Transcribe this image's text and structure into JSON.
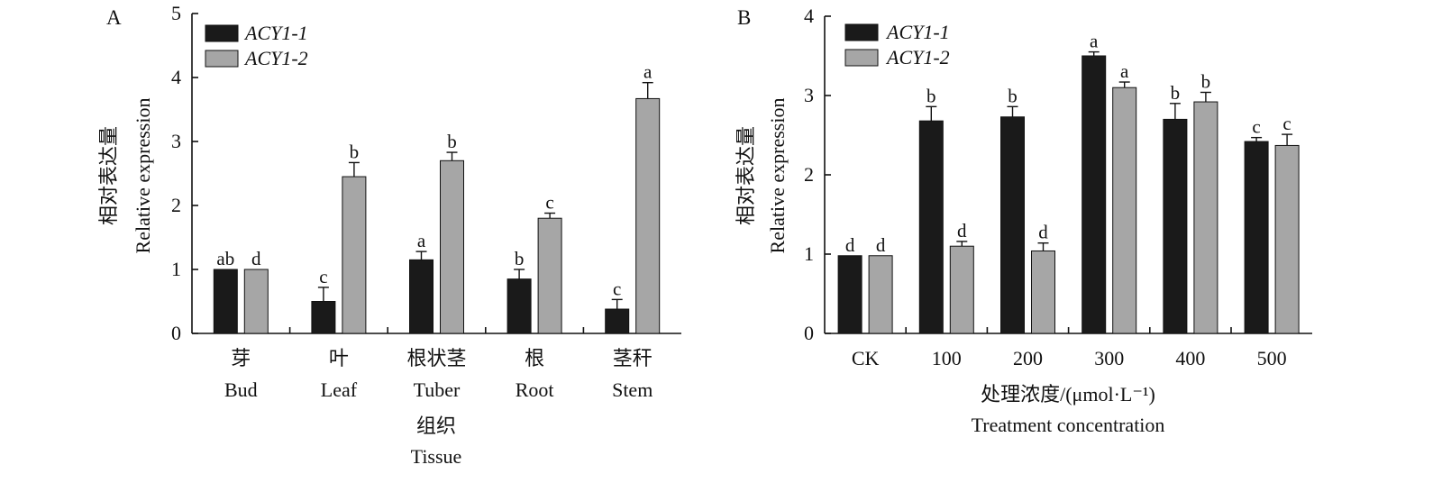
{
  "colors": {
    "series1": "#1a1a1a",
    "series2": "#a6a6a6",
    "axis": "#111111",
    "text": "#111111"
  },
  "chart_data": [
    {
      "panel": "A",
      "type": "bar",
      "ylabel_cn": "相对表达量",
      "ylabel_en": "Relative expression",
      "xlabel_cn": "组织",
      "xlabel_en": "Tissue",
      "ylim": [
        0,
        5
      ],
      "yticks": [
        "0",
        "1",
        "2",
        "3",
        "4",
        "5"
      ],
      "categories_cn": [
        "芽",
        "叶",
        "根状茎",
        "根",
        "茎秆"
      ],
      "categories_en": [
        "Bud",
        "Leaf",
        "Tuber",
        "Root",
        "Stem"
      ],
      "legend": [
        "ACY1-1",
        "ACY1-2"
      ],
      "legend_position": "top-left",
      "series": [
        {
          "name": "ACY1-1",
          "values": [
            1.0,
            0.5,
            1.15,
            0.85,
            0.38
          ],
          "errors": [
            0.0,
            0.22,
            0.13,
            0.15,
            0.15
          ],
          "letters": [
            "ab",
            "c",
            "a",
            "b",
            "c"
          ]
        },
        {
          "name": "ACY1-2",
          "values": [
            1.0,
            2.45,
            2.7,
            1.8,
            3.67
          ],
          "errors": [
            0.0,
            0.22,
            0.13,
            0.08,
            0.25
          ],
          "letters": [
            "d",
            "b",
            "b",
            "c",
            "a"
          ]
        }
      ]
    },
    {
      "panel": "B",
      "type": "bar",
      "ylabel_cn": "相对表达量",
      "ylabel_en": "Relative expression",
      "xlabel_cn": "处理浓度/(μmol·L⁻¹)",
      "xlabel_en": "Treatment concentration",
      "ylim": [
        0,
        4
      ],
      "yticks": [
        "0",
        "1",
        "2",
        "3",
        "4"
      ],
      "categories_cn": [],
      "categories_en": [
        "CK",
        "100",
        "200",
        "300",
        "400",
        "500"
      ],
      "legend": [
        "ACY1-1",
        "ACY1-2"
      ],
      "legend_position": "top-left",
      "series": [
        {
          "name": "ACY1-1",
          "values": [
            0.98,
            2.68,
            2.73,
            3.5,
            2.7,
            2.42
          ],
          "errors": [
            0.0,
            0.18,
            0.13,
            0.05,
            0.2,
            0.05
          ],
          "letters": [
            "d",
            "b",
            "b",
            "a",
            "b",
            "c"
          ]
        },
        {
          "name": "ACY1-2",
          "values": [
            0.98,
            1.1,
            1.04,
            3.1,
            2.92,
            2.37
          ],
          "errors": [
            0.0,
            0.06,
            0.1,
            0.07,
            0.12,
            0.14
          ],
          "letters": [
            "d",
            "d",
            "d",
            "a",
            "b",
            "c"
          ]
        }
      ]
    }
  ]
}
